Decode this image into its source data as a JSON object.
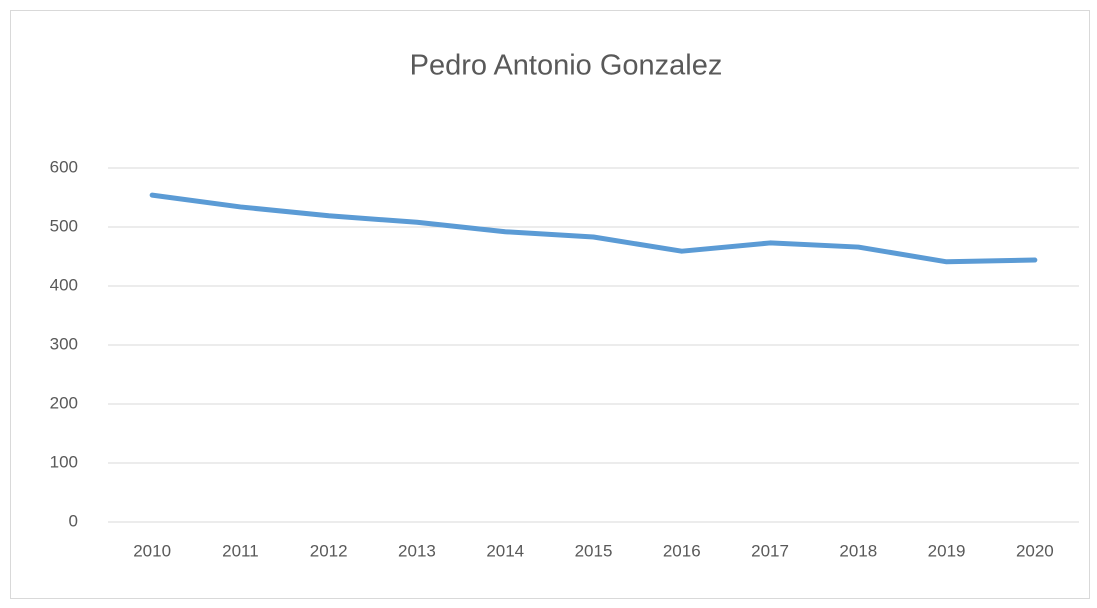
{
  "chart_data": {
    "type": "line",
    "title": "Pedro Antonio Gonzalez",
    "categories": [
      "2010",
      "2011",
      "2012",
      "2013",
      "2014",
      "2015",
      "2016",
      "2017",
      "2018",
      "2019",
      "2020"
    ],
    "series": [
      {
        "name": "Pedro Antonio Gonzalez",
        "color": "#5b9bd5",
        "values": [
          554,
          534,
          519,
          508,
          492,
          483,
          459,
          473,
          466,
          441,
          444
        ]
      }
    ],
    "ylim": [
      0,
      600
    ],
    "yticks": [
      0,
      100,
      200,
      300,
      400,
      500,
      600
    ],
    "grid": true
  }
}
